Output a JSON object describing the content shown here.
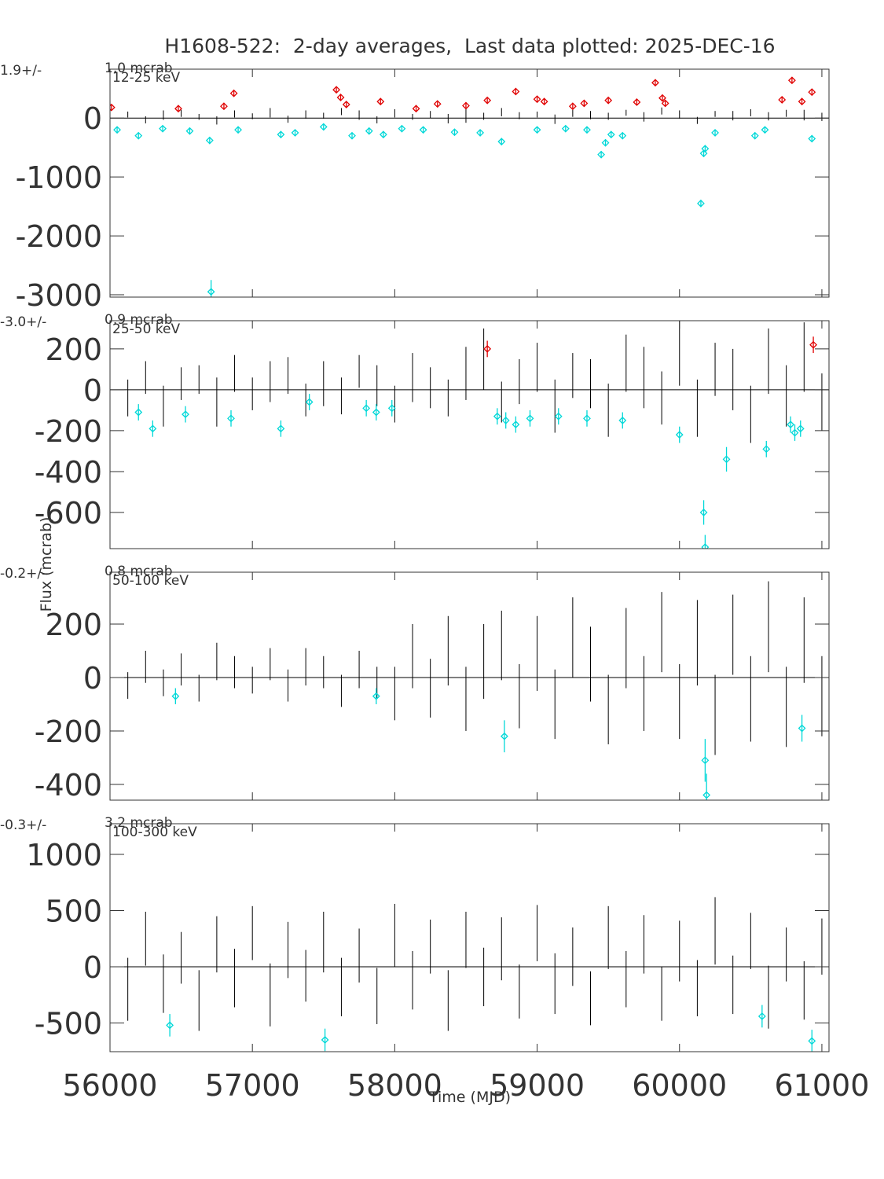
{
  "title": "H1608-522:  2-day averages,  Last data plotted: 2025-DEC-16",
  "x_label": "Time (MJD)",
  "y_label": "Flux (mcrab)",
  "chart_data": [
    {
      "type": "errorbar",
      "band_label": "12-25 keV",
      "stat_value": "1.9+/-",
      "stat_error": "1.0 mcrab",
      "xlim": [
        56000,
        61050
      ],
      "xticks": [
        56000,
        57000,
        58000,
        59000,
        60000,
        61000
      ],
      "ylim": [
        -3040,
        830
      ],
      "yticks": [
        -3000,
        -2000,
        -1000,
        0
      ],
      "series": [
        {
          "color": "#000000",
          "x": [
            56000,
            56125,
            56250,
            56375,
            56500,
            56625,
            56750,
            56875,
            57000,
            57125,
            57250,
            57375,
            57500,
            57625,
            57750,
            57875,
            58000,
            58125,
            58250,
            58375,
            58500,
            58625,
            58750,
            58875,
            59000,
            59125,
            59250,
            59375,
            59500,
            59625,
            59750,
            59875,
            60000,
            60125,
            60250,
            60375,
            60500,
            60625,
            60750,
            60875,
            61000
          ],
          "values": [
            40,
            60,
            -30,
            50,
            80,
            20,
            -40,
            70,
            30,
            90,
            -20,
            60,
            40,
            110,
            50,
            -30,
            80,
            20,
            60,
            -10,
            70,
            30,
            100,
            40,
            60,
            -20,
            80,
            50,
            30,
            90,
            20,
            120,
            60,
            -40,
            70,
            40,
            90,
            30,
            80,
            50,
            20
          ],
          "errors": [
            70,
            50,
            60,
            80,
            60,
            50,
            70,
            60,
            50,
            80,
            60,
            70,
            50,
            60,
            80,
            60,
            70,
            50,
            60,
            80,
            150,
            60,
            70,
            60,
            50,
            80,
            60,
            70,
            60,
            50,
            80,
            60,
            70,
            60,
            50,
            80,
            60,
            70,
            60,
            90,
            70
          ]
        },
        {
          "color": "#e00000",
          "marker": "diamond",
          "x": [
            56010,
            56480,
            56800,
            56870,
            57590,
            57620,
            57660,
            57900,
            58150,
            58300,
            58500,
            58650,
            58850,
            59000,
            59050,
            59250,
            59330,
            59500,
            59700,
            59830,
            59880,
            59900,
            60720,
            60790,
            60860,
            60930
          ],
          "values": [
            180,
            160,
            200,
            420,
            480,
            350,
            230,
            280,
            160,
            240,
            210,
            300,
            450,
            320,
            280,
            200,
            250,
            300,
            270,
            600,
            340,
            250,
            310,
            640,
            280,
            440
          ],
          "errors": [
            40,
            40,
            40,
            40,
            40,
            40,
            40,
            40,
            40,
            40,
            40,
            40,
            40,
            40,
            40,
            40,
            40,
            40,
            40,
            40,
            40,
            40,
            40,
            40,
            40,
            40
          ]
        },
        {
          "color": "#00d8d8",
          "marker": "diamond",
          "x": [
            56050,
            56200,
            56370,
            56560,
            56700,
            56710,
            56900,
            57200,
            57300,
            57500,
            57700,
            57820,
            57920,
            58050,
            58200,
            58420,
            58600,
            58750,
            59000,
            59200,
            59350,
            59450,
            59480,
            59520,
            59600,
            60150,
            60170,
            60180,
            60250,
            60530,
            60600,
            60930
          ],
          "values": [
            -200,
            -300,
            -180,
            -220,
            -380,
            -2950,
            -200,
            -280,
            -250,
            -150,
            -300,
            -220,
            -280,
            -180,
            -200,
            -240,
            -250,
            -400,
            -200,
            -180,
            -200,
            -620,
            -420,
            -280,
            -300,
            -1450,
            -600,
            -520,
            -250,
            -300,
            -200,
            -350
          ],
          "errors": [
            50,
            50,
            50,
            50,
            60,
            200,
            50,
            50,
            50,
            50,
            50,
            50,
            50,
            50,
            50,
            50,
            50,
            60,
            50,
            50,
            50,
            60,
            60,
            50,
            50,
            60,
            60,
            60,
            50,
            50,
            50,
            60
          ]
        }
      ]
    },
    {
      "type": "errorbar",
      "band_label": "25-50 keV",
      "stat_value": "-3.0+/-",
      "stat_error": "0.9 mcrab",
      "xlim": [
        56000,
        61050
      ],
      "xticks": [
        56000,
        57000,
        58000,
        59000,
        60000,
        61000
      ],
      "ylim": [
        -777,
        338
      ],
      "yticks": [
        -600,
        -400,
        -200,
        0,
        200
      ],
      "series": [
        {
          "color": "#000000",
          "x": [
            56000,
            56125,
            56250,
            56375,
            56500,
            56625,
            56750,
            56875,
            57000,
            57125,
            57250,
            57375,
            57500,
            57625,
            57750,
            57875,
            58000,
            58125,
            58250,
            58375,
            58500,
            58625,
            58750,
            58875,
            59000,
            59125,
            59250,
            59375,
            59500,
            59625,
            59750,
            59875,
            60000,
            60125,
            60250,
            60375,
            60500,
            60625,
            60750,
            60875,
            61000
          ],
          "values": [
            20,
            -40,
            60,
            -80,
            30,
            50,
            -60,
            80,
            -20,
            40,
            70,
            -50,
            30,
            -30,
            90,
            20,
            -70,
            60,
            10,
            -40,
            80,
            150,
            -60,
            40,
            110,
            -80,
            70,
            30,
            -100,
            130,
            60,
            -40,
            180,
            -90,
            100,
            50,
            -120,
            140,
            -30,
            160,
            -60
          ],
          "errors": [
            70,
            90,
            80,
            100,
            80,
            70,
            120,
            90,
            80,
            100,
            90,
            80,
            110,
            90,
            80,
            100,
            90,
            120,
            100,
            90,
            130,
            150,
            100,
            110,
            120,
            130,
            110,
            120,
            130,
            140,
            150,
            130,
            160,
            140,
            130,
            150,
            140,
            160,
            150,
            170,
            140
          ]
        },
        {
          "color": "#e00000",
          "marker": "diamond",
          "x": [
            58650,
            60940
          ],
          "values": [
            200,
            220
          ],
          "errors": [
            40,
            40
          ]
        },
        {
          "color": "#00d8d8",
          "marker": "diamond",
          "x": [
            56200,
            56300,
            56530,
            56850,
            57200,
            57400,
            57800,
            57870,
            57980,
            58720,
            58780,
            58850,
            58950,
            59150,
            59350,
            59600,
            60000,
            60170,
            60180,
            60330,
            60610,
            60780,
            60810,
            60850
          ],
          "values": [
            -110,
            -190,
            -120,
            -140,
            -190,
            -60,
            -90,
            -110,
            -90,
            -130,
            -150,
            -170,
            -140,
            -130,
            -140,
            -150,
            -220,
            -600,
            -770,
            -340,
            -290,
            -170,
            -210,
            -190
          ],
          "errors": [
            40,
            40,
            40,
            40,
            40,
            40,
            40,
            40,
            40,
            40,
            40,
            40,
            40,
            40,
            40,
            40,
            40,
            60,
            60,
            60,
            40,
            40,
            40,
            40
          ]
        }
      ]
    },
    {
      "type": "errorbar",
      "band_label": "50-100 keV",
      "stat_value": "-0.2+/-",
      "stat_error": "0.8 mcrab",
      "xlim": [
        56000,
        61050
      ],
      "xticks": [
        56000,
        57000,
        58000,
        59000,
        60000,
        61000
      ],
      "ylim": [
        -459,
        394
      ],
      "yticks": [
        -400,
        -200,
        0,
        200
      ],
      "series": [
        {
          "color": "#000000",
          "x": [
            56000,
            56125,
            56250,
            56375,
            56500,
            56625,
            56750,
            56875,
            57000,
            57125,
            57250,
            57375,
            57500,
            57625,
            57750,
            57875,
            58000,
            58125,
            58250,
            58375,
            58500,
            58625,
            58750,
            58875,
            59000,
            59125,
            59250,
            59375,
            59500,
            59625,
            59750,
            59875,
            60000,
            60125,
            60250,
            60375,
            60500,
            60625,
            60750,
            60875,
            61000
          ],
          "values": [
            10,
            -30,
            40,
            -20,
            30,
            -40,
            60,
            20,
            -10,
            50,
            -30,
            40,
            20,
            -50,
            30,
            -20,
            -60,
            80,
            -40,
            100,
            -80,
            60,
            120,
            -70,
            90,
            -100,
            150,
            50,
            -120,
            110,
            -60,
            170,
            -90,
            130,
            -140,
            160,
            -80,
            190,
            -110,
            140,
            -70
          ],
          "errors": [
            50,
            50,
            60,
            50,
            60,
            50,
            70,
            60,
            50,
            60,
            60,
            70,
            60,
            60,
            70,
            60,
            100,
            120,
            110,
            130,
            120,
            140,
            130,
            120,
            140,
            130,
            150,
            140,
            130,
            150,
            140,
            150,
            140,
            160,
            150,
            150,
            160,
            170,
            150,
            160,
            150
          ]
        },
        {
          "color": "#00d8d8",
          "marker": "diamond",
          "x": [
            56460,
            57870,
            58770,
            60180,
            60190,
            60860
          ],
          "values": [
            -70,
            -70,
            -220,
            -310,
            -440,
            -190
          ],
          "errors": [
            30,
            30,
            60,
            80,
            80,
            50
          ]
        }
      ]
    },
    {
      "type": "errorbar",
      "band_label": "100-300 keV",
      "stat_value": "-0.3+/-",
      "stat_error": "3.2 mcrab",
      "xlim": [
        56000,
        61050
      ],
      "xticks": [
        56000,
        57000,
        58000,
        59000,
        60000,
        61000
      ],
      "ylim": [
        -755,
        1273
      ],
      "yticks": [
        -500,
        0,
        500,
        1000
      ],
      "series": [
        {
          "color": "#000000",
          "x": [
            56000,
            56125,
            56250,
            56375,
            56500,
            56625,
            56750,
            56875,
            57000,
            57125,
            57250,
            57375,
            57500,
            57625,
            57750,
            57875,
            58000,
            58125,
            58250,
            58375,
            58500,
            58625,
            58750,
            58875,
            59000,
            59125,
            59250,
            59375,
            59500,
            59625,
            59750,
            59875,
            60000,
            60125,
            60250,
            60375,
            60500,
            60625,
            60750,
            60875,
            61000
          ],
          "values": [
            120,
            -200,
            250,
            -150,
            80,
            -300,
            200,
            -100,
            300,
            -250,
            150,
            -80,
            220,
            -180,
            100,
            -260,
            280,
            -120,
            180,
            -300,
            240,
            -90,
            160,
            -220,
            300,
            -150,
            90,
            -280,
            260,
            -110,
            200,
            -240,
            140,
            -190,
            320,
            -160,
            230,
            -270,
            110,
            -210,
            180
          ],
          "errors": [
            250,
            280,
            240,
            260,
            230,
            270,
            250,
            260,
            240,
            280,
            250,
            230,
            270,
            260,
            240,
            250,
            280,
            260,
            240,
            270,
            250,
            260,
            280,
            240,
            250,
            270,
            260,
            240,
            280,
            250,
            260,
            240,
            270,
            250,
            300,
            260,
            250,
            280,
            240,
            260,
            250
          ]
        },
        {
          "color": "#00d8d8",
          "marker": "diamond",
          "x": [
            56420,
            57510,
            60580,
            60930
          ],
          "values": [
            -520,
            -650,
            -440,
            -660
          ],
          "errors": [
            100,
            100,
            100,
            100
          ]
        }
      ]
    }
  ]
}
